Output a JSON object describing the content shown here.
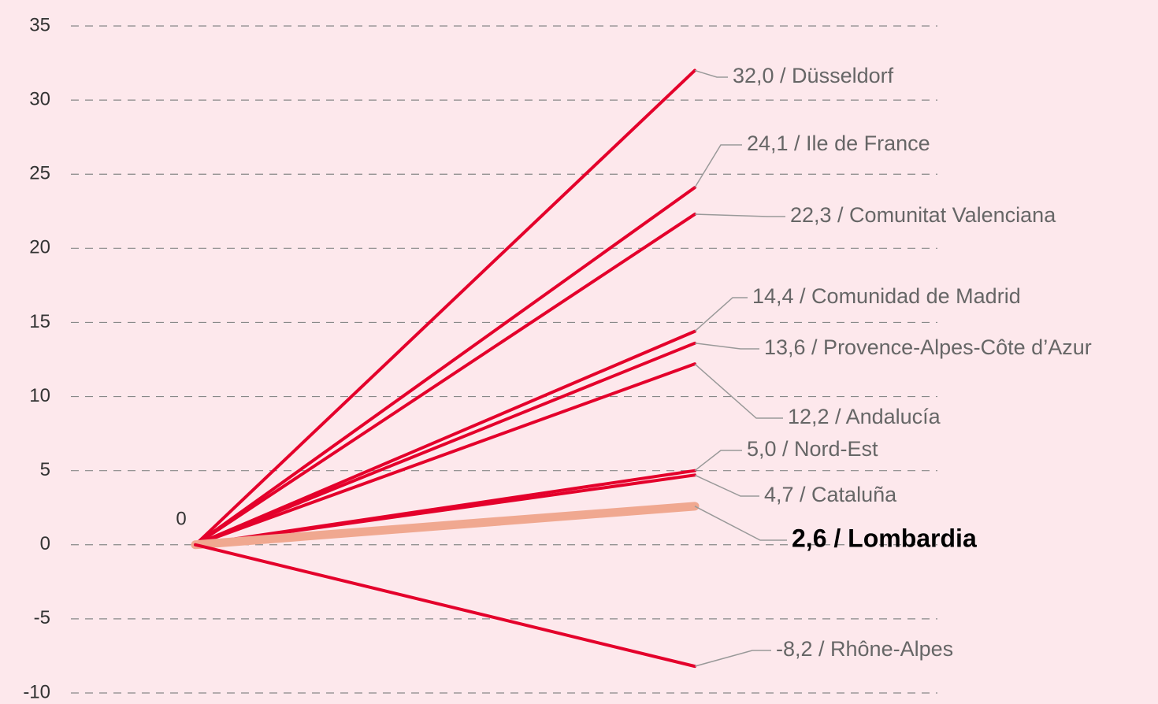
{
  "chart_data": {
    "type": "line",
    "annotations": [
      "0"
    ],
    "ylim": [
      -10,
      35
    ],
    "yticks": [
      -10,
      -5,
      0,
      5,
      10,
      15,
      20,
      25,
      30,
      35
    ],
    "grid": true,
    "series": [
      {
        "color": "#e4002b",
        "values": [
          0,
          32.0
        ],
        "value_label": "32,0 / Düsseldorf"
      },
      {
        "color": "#e4002b",
        "values": [
          0,
          24.1
        ],
        "value_label": "24,1 / Ile de France"
      },
      {
        "color": "#e4002b",
        "values": [
          0,
          22.3
        ],
        "value_label": "22,3 / Comunitat Valenciana"
      },
      {
        "color": "#e4002b",
        "values": [
          0,
          14.4
        ],
        "value_label": "14,4 / Comunidad de Madrid"
      },
      {
        "color": "#e4002b",
        "values": [
          0,
          13.6
        ],
        "value_label": "13,6 / Provence-Alpes-Côte d’Azur"
      },
      {
        "color": "#e4002b",
        "values": [
          0,
          12.2
        ],
        "value_label": "12,2 / Andalucía"
      },
      {
        "color": "#e4002b",
        "values": [
          0,
          5.0
        ],
        "value_label": "5,0 / Nord-Est"
      },
      {
        "color": "#e4002b",
        "values": [
          0,
          4.7
        ],
        "value_label": "4,7 / Cataluña"
      },
      {
        "color": "#f0a890",
        "values": [
          0,
          2.6
        ],
        "value_label": "2,6 / Lombardia",
        "highlight": true
      },
      {
        "color": "#e4002b",
        "values": [
          0,
          -8.2
        ],
        "value_label": "-8,2 / Rhône-Alpes"
      }
    ]
  }
}
